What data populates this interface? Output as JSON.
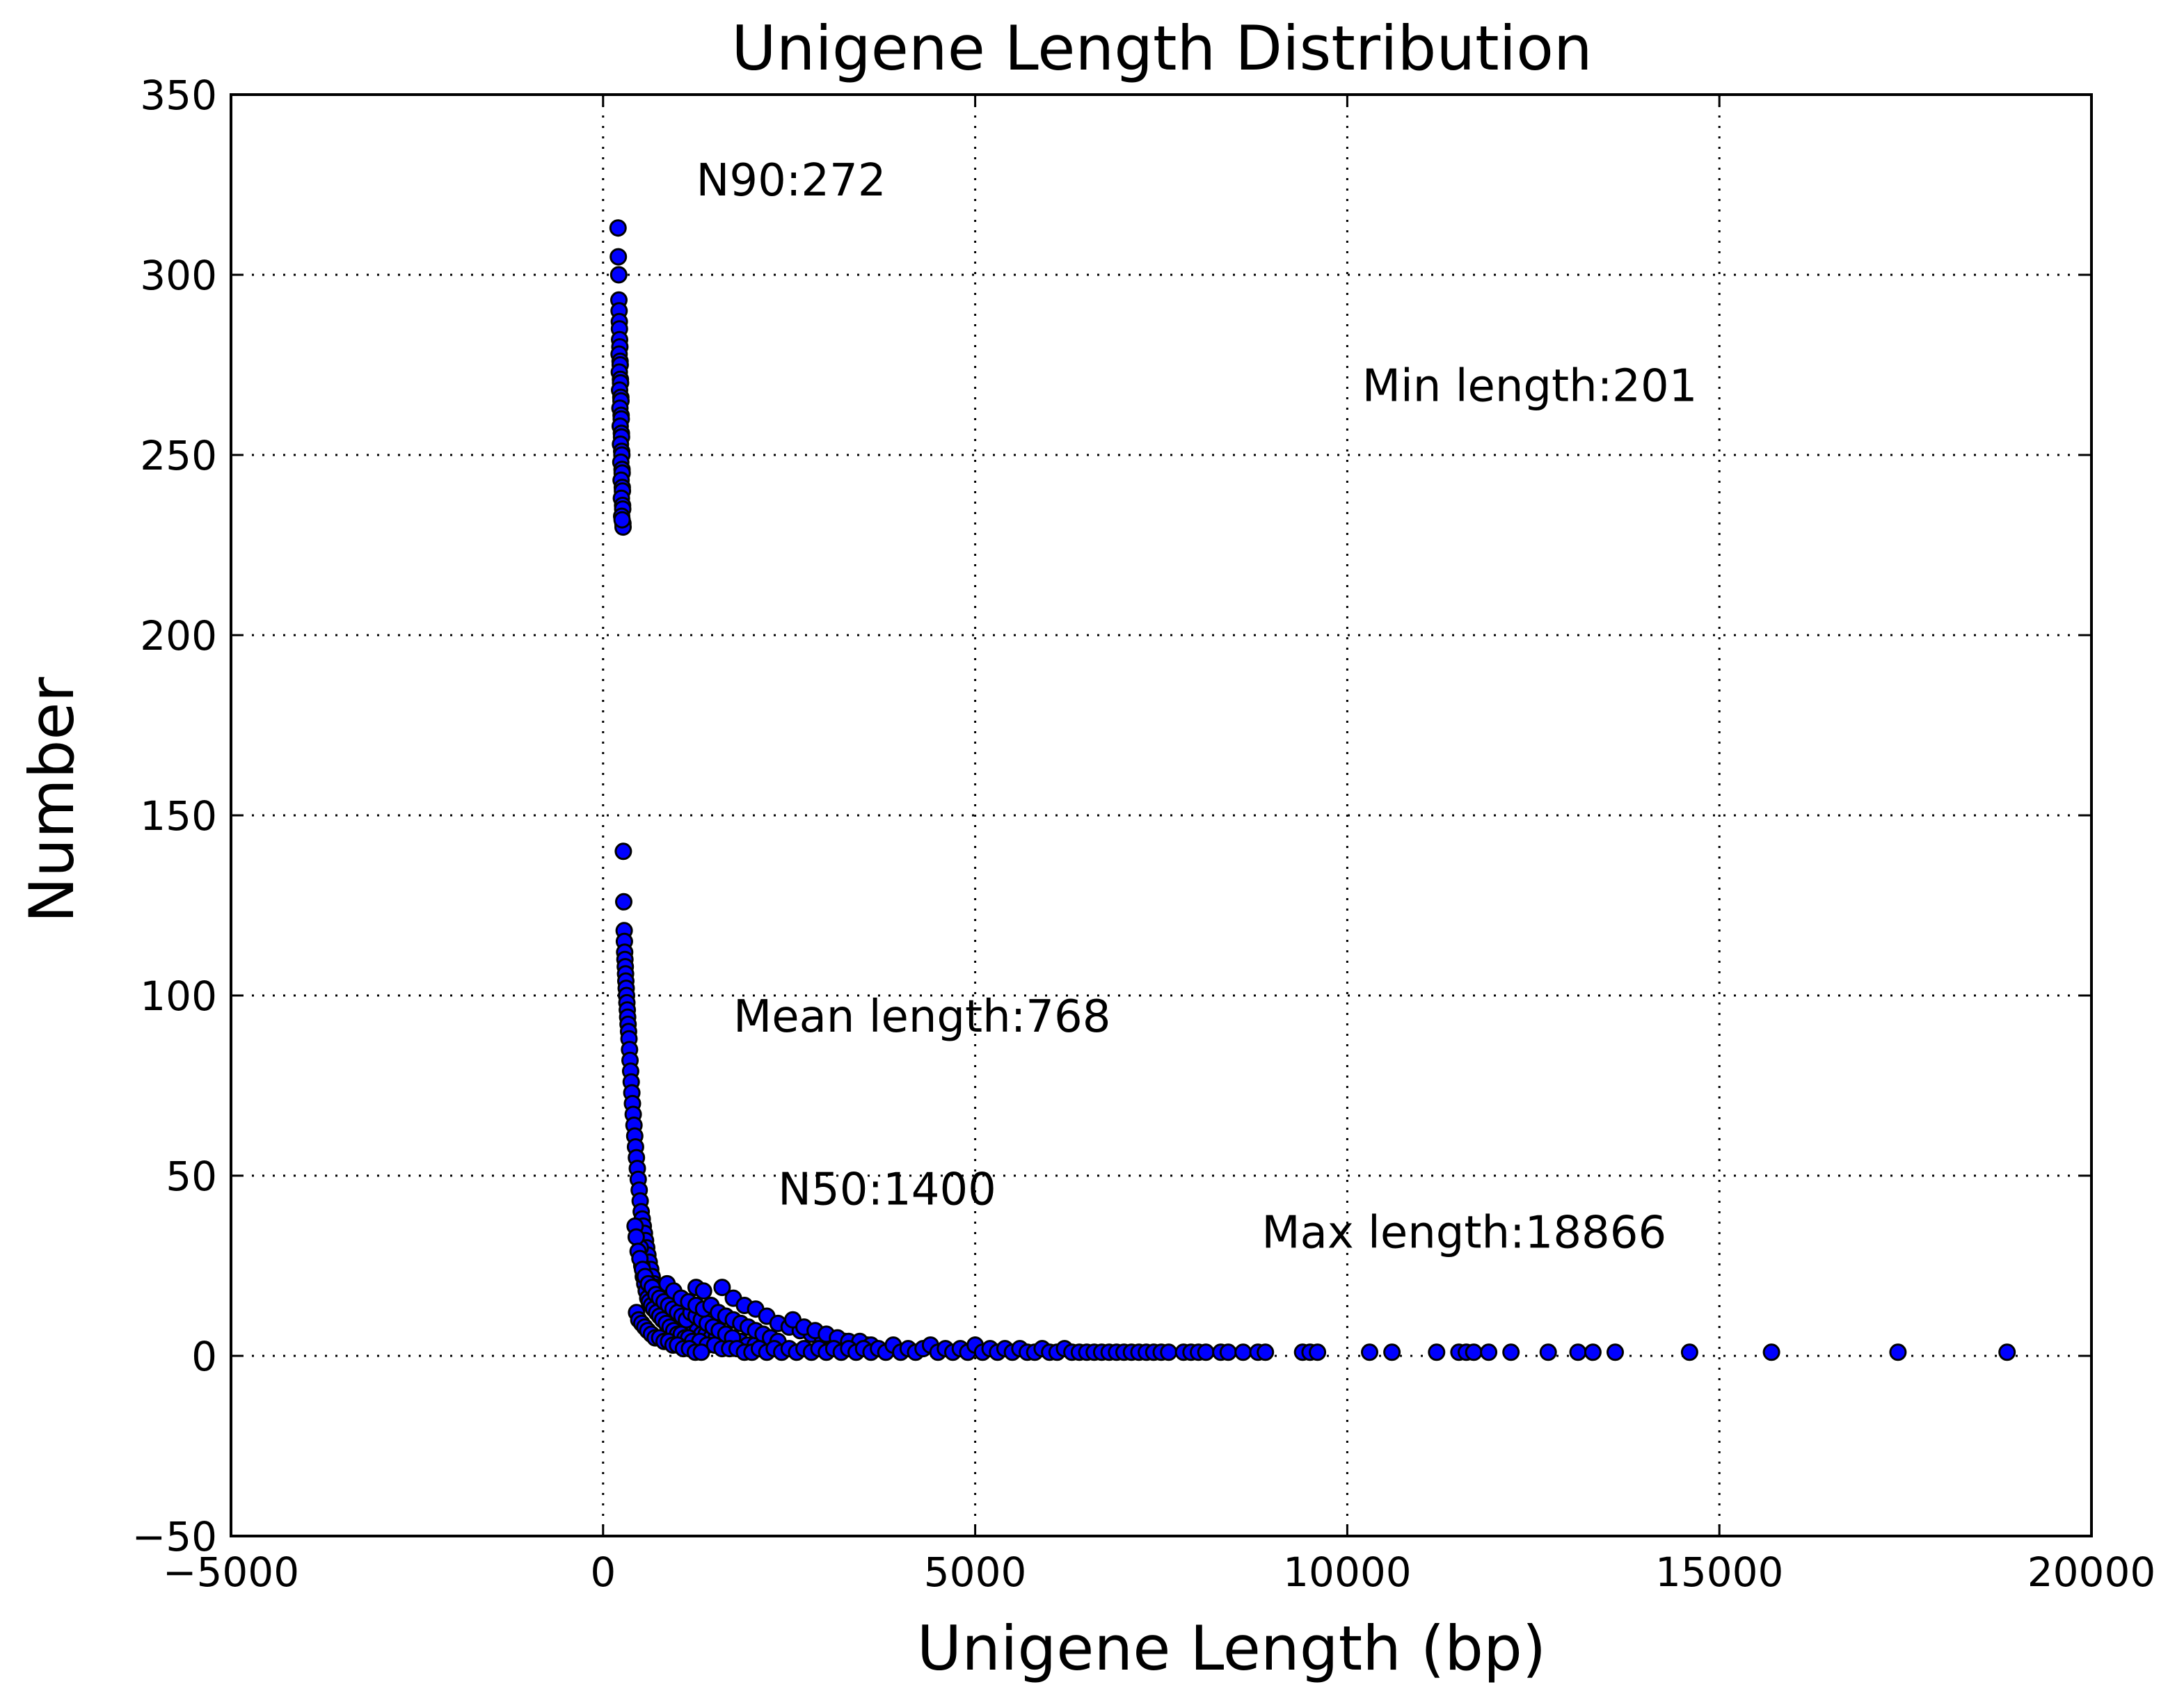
{
  "chart_data": {
    "type": "scatter",
    "title": "Unigene Length Distribution",
    "xlabel": "Unigene Length (bp)",
    "ylabel": "Number",
    "xlim": [
      -5000,
      20000
    ],
    "ylim": [
      -50,
      350
    ],
    "xticks": [
      -5000,
      0,
      5000,
      10000,
      15000,
      20000
    ],
    "yticks": [
      -50,
      0,
      50,
      100,
      150,
      200,
      250,
      300,
      350
    ],
    "xtick_labels": [
      "−5000",
      "0",
      "5000",
      "10000",
      "15000",
      "20000"
    ],
    "ytick_labels": [
      "−50",
      "0",
      "50",
      "100",
      "150",
      "200",
      "250",
      "300",
      "350"
    ],
    "grid": true,
    "marker_color": "#0000ff",
    "marker_edge_color": "#000000",
    "annotations": [
      {
        "text": "N90:272",
        "x": 1250,
        "y": 322
      },
      {
        "text": "Min length:201",
        "x": 10200,
        "y": 265
      },
      {
        "text": "Mean length:768",
        "x": 1750,
        "y": 90
      },
      {
        "text": "N50:1400",
        "x": 2350,
        "y": 42
      },
      {
        "text": "Max length:18866",
        "x": 8850,
        "y": 30
      }
    ],
    "series": [
      {
        "points": [
          [
            201,
            313
          ],
          [
            205,
            305
          ],
          [
            210,
            300
          ],
          [
            212,
            293
          ],
          [
            215,
            290
          ],
          [
            218,
            287
          ],
          [
            220,
            285
          ],
          [
            222,
            282
          ],
          [
            225,
            280
          ],
          [
            215,
            278
          ],
          [
            228,
            276
          ],
          [
            230,
            275
          ],
          [
            218,
            273
          ],
          [
            233,
            271
          ],
          [
            235,
            270
          ],
          [
            222,
            268
          ],
          [
            238,
            266
          ],
          [
            240,
            265
          ],
          [
            226,
            263
          ],
          [
            242,
            261
          ],
          [
            244,
            260
          ],
          [
            230,
            258
          ],
          [
            246,
            256
          ],
          [
            248,
            255
          ],
          [
            234,
            253
          ],
          [
            250,
            251
          ],
          [
            252,
            250
          ],
          [
            238,
            248
          ],
          [
            254,
            246
          ],
          [
            256,
            245
          ],
          [
            242,
            243
          ],
          [
            258,
            241
          ],
          [
            260,
            240
          ],
          [
            246,
            238
          ],
          [
            262,
            236
          ],
          [
            264,
            235
          ],
          [
            250,
            233
          ],
          [
            266,
            231
          ],
          [
            268,
            230
          ],
          [
            255,
            232
          ],
          [
            272,
            140
          ],
          [
            278,
            126
          ],
          [
            283,
            118
          ],
          [
            286,
            115
          ],
          [
            290,
            112
          ],
          [
            294,
            110
          ],
          [
            298,
            108
          ],
          [
            302,
            106
          ],
          [
            306,
            104
          ],
          [
            310,
            102
          ],
          [
            315,
            100
          ],
          [
            320,
            98
          ],
          [
            325,
            96
          ],
          [
            330,
            94
          ],
          [
            336,
            92
          ],
          [
            342,
            90
          ],
          [
            348,
            88
          ],
          [
            355,
            85
          ],
          [
            362,
            82
          ],
          [
            370,
            79
          ],
          [
            378,
            76
          ],
          [
            386,
            73
          ],
          [
            395,
            70
          ],
          [
            405,
            67
          ],
          [
            415,
            64
          ],
          [
            425,
            61
          ],
          [
            436,
            58
          ],
          [
            448,
            55
          ],
          [
            460,
            52
          ],
          [
            472,
            49
          ],
          [
            485,
            46
          ],
          [
            498,
            43
          ],
          [
            512,
            40
          ],
          [
            526,
            38
          ],
          [
            540,
            36
          ],
          [
            555,
            34
          ],
          [
            570,
            32
          ],
          [
            586,
            30
          ],
          [
            602,
            28
          ],
          [
            620,
            26
          ],
          [
            640,
            24
          ],
          [
            660,
            22
          ],
          [
            682,
            20
          ],
          [
            705,
            19
          ],
          [
            730,
            18
          ],
          [
            756,
            17
          ],
          [
            784,
            16
          ],
          [
            812,
            15
          ],
          [
            842,
            14
          ],
          [
            874,
            13
          ],
          [
            908,
            12
          ],
          [
            944,
            11
          ],
          [
            982,
            10
          ],
          [
            1022,
            9
          ],
          [
            1066,
            9
          ],
          [
            1112,
            8
          ],
          [
            1160,
            8
          ],
          [
            1212,
            7
          ],
          [
            1266,
            7
          ],
          [
            1324,
            6
          ],
          [
            1386,
            6
          ],
          [
            1450,
            5
          ],
          [
            1520,
            5
          ],
          [
            1594,
            5
          ],
          [
            1672,
            4
          ],
          [
            1756,
            4
          ],
          [
            1846,
            4
          ],
          [
            1942,
            3
          ],
          [
            2044,
            3
          ],
          [
            2154,
            3
          ],
          [
            2272,
            3
          ],
          [
            2398,
            2
          ],
          [
            500,
            30
          ],
          [
            520,
            25
          ],
          [
            540,
            22
          ],
          [
            560,
            20
          ],
          [
            580,
            18
          ],
          [
            600,
            16
          ],
          [
            620,
            15
          ],
          [
            650,
            14
          ],
          [
            680,
            13
          ],
          [
            720,
            12
          ],
          [
            760,
            11
          ],
          [
            800,
            10
          ],
          [
            850,
            9
          ],
          [
            900,
            8
          ],
          [
            950,
            7
          ],
          [
            1000,
            6
          ],
          [
            1050,
            6
          ],
          [
            1100,
            5
          ],
          [
            1150,
            5
          ],
          [
            1200,
            4
          ],
          [
            1300,
            4
          ],
          [
            1400,
            3
          ],
          [
            1500,
            3
          ],
          [
            1600,
            2
          ],
          [
            450,
            12
          ],
          [
            480,
            10
          ],
          [
            520,
            9
          ],
          [
            560,
            8
          ],
          [
            600,
            7
          ],
          [
            650,
            6
          ],
          [
            700,
            5
          ],
          [
            760,
            5
          ],
          [
            820,
            4
          ],
          [
            880,
            4
          ],
          [
            940,
            3
          ],
          [
            1000,
            3
          ],
          [
            1080,
            2
          ],
          [
            1160,
            2
          ],
          [
            1240,
            1
          ],
          [
            1320,
            1
          ],
          [
            430,
            36
          ],
          [
            445,
            33
          ],
          [
            470,
            29
          ],
          [
            495,
            27
          ],
          [
            530,
            24
          ],
          [
            565,
            22
          ],
          [
            610,
            20
          ],
          [
            660,
            19
          ],
          [
            710,
            17
          ],
          [
            760,
            16
          ],
          [
            820,
            15
          ],
          [
            880,
            14
          ],
          [
            940,
            13
          ],
          [
            1000,
            12
          ],
          [
            1060,
            11
          ],
          [
            1120,
            10
          ],
          [
            1180,
            12
          ],
          [
            1250,
            11
          ],
          [
            1320,
            10
          ],
          [
            1400,
            9
          ],
          [
            1480,
            8
          ],
          [
            1560,
            7
          ],
          [
            1650,
            6
          ],
          [
            1740,
            5
          ],
          [
            860,
            20
          ],
          [
            950,
            18
          ],
          [
            1050,
            16
          ],
          [
            1150,
            15
          ],
          [
            1250,
            14
          ],
          [
            1350,
            13
          ],
          [
            1450,
            14
          ],
          [
            1550,
            12
          ],
          [
            1650,
            11
          ],
          [
            1750,
            10
          ],
          [
            1850,
            9
          ],
          [
            1950,
            8
          ],
          [
            2050,
            7
          ],
          [
            2150,
            6
          ],
          [
            2250,
            5
          ],
          [
            2350,
            4
          ],
          [
            1250,
            19
          ],
          [
            1350,
            18
          ],
          [
            1600,
            19
          ],
          [
            1750,
            16
          ],
          [
            1900,
            14
          ],
          [
            2050,
            13
          ],
          [
            2200,
            11
          ],
          [
            2350,
            9
          ],
          [
            2500,
            8
          ],
          [
            2650,
            7
          ],
          [
            2800,
            6
          ],
          [
            2950,
            5
          ],
          [
            3100,
            4
          ],
          [
            3250,
            4
          ],
          [
            3400,
            3
          ],
          [
            3550,
            3
          ],
          [
            2550,
            10
          ],
          [
            2700,
            8
          ],
          [
            2850,
            7
          ],
          [
            3000,
            6
          ],
          [
            3150,
            5
          ],
          [
            3300,
            4
          ],
          [
            3450,
            4
          ],
          [
            3600,
            3
          ],
          [
            1700,
            2
          ],
          [
            1800,
            2
          ],
          [
            1900,
            1
          ],
          [
            2000,
            1
          ],
          [
            2100,
            2
          ],
          [
            2200,
            1
          ],
          [
            2300,
            2
          ],
          [
            2400,
            1
          ],
          [
            2500,
            2
          ],
          [
            2600,
            1
          ],
          [
            2700,
            2
          ],
          [
            2800,
            1
          ],
          [
            2900,
            2
          ],
          [
            3000,
            1
          ],
          [
            3100,
            2
          ],
          [
            3200,
            1
          ],
          [
            3300,
            2
          ],
          [
            3400,
            1
          ],
          [
            3500,
            2
          ],
          [
            3600,
            1
          ],
          [
            3700,
            2
          ],
          [
            3800,
            1
          ],
          [
            3900,
            3
          ],
          [
            4000,
            1
          ],
          [
            4100,
            2
          ],
          [
            4200,
            1
          ],
          [
            4300,
            2
          ],
          [
            4400,
            3
          ],
          [
            4500,
            1
          ],
          [
            4600,
            2
          ],
          [
            4700,
            1
          ],
          [
            4800,
            2
          ],
          [
            4900,
            1
          ],
          [
            5000,
            3
          ],
          [
            5100,
            1
          ],
          [
            5200,
            2
          ],
          [
            5300,
            1
          ],
          [
            5400,
            2
          ],
          [
            5500,
            1
          ],
          [
            5600,
            2
          ],
          [
            5700,
            1
          ],
          [
            5800,
            1
          ],
          [
            5900,
            2
          ],
          [
            6000,
            1
          ],
          [
            6100,
            1
          ],
          [
            6200,
            2
          ],
          [
            6300,
            1
          ],
          [
            6400,
            1
          ],
          [
            6500,
            1
          ],
          [
            6600,
            1
          ],
          [
            6700,
            1
          ],
          [
            6800,
            1
          ],
          [
            6900,
            1
          ],
          [
            7000,
            1
          ],
          [
            7100,
            1
          ],
          [
            7200,
            1
          ],
          [
            7300,
            1
          ],
          [
            7400,
            1
          ],
          [
            7500,
            1
          ],
          [
            7600,
            1
          ],
          [
            7800,
            1
          ],
          [
            7900,
            1
          ],
          [
            8000,
            1
          ],
          [
            8100,
            1
          ],
          [
            8300,
            1
          ],
          [
            8400,
            1
          ],
          [
            8600,
            1
          ],
          [
            8800,
            1
          ],
          [
            8900,
            1
          ],
          [
            9400,
            1
          ],
          [
            9500,
            1
          ],
          [
            9600,
            1
          ],
          [
            10300,
            1
          ],
          [
            10600,
            1
          ],
          [
            11200,
            1
          ],
          [
            11500,
            1
          ],
          [
            11600,
            1
          ],
          [
            11700,
            1
          ],
          [
            11900,
            1
          ],
          [
            12200,
            1
          ],
          [
            12700,
            1
          ],
          [
            13100,
            1
          ],
          [
            13300,
            1
          ],
          [
            13600,
            1
          ],
          [
            14600,
            1
          ],
          [
            15700,
            1
          ],
          [
            17400,
            1
          ],
          [
            18866,
            1
          ]
        ]
      }
    ]
  }
}
